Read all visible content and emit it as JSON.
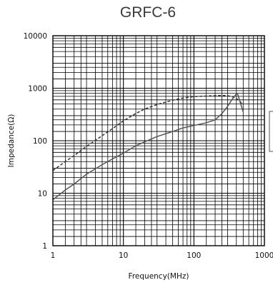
{
  "chart_data": {
    "type": "line",
    "title": "GRFC-6",
    "xlabel": "Frequency(MHz)",
    "ylabel": "Impedance(Ω)",
    "xscale": "log",
    "yscale": "log",
    "xlim": [
      1,
      1000
    ],
    "ylim": [
      1,
      10000
    ],
    "grid": true,
    "x_ticks": [
      {
        "value": 1,
        "label": "1"
      },
      {
        "value": 10,
        "label": "10"
      },
      {
        "value": 100,
        "label": "100"
      },
      {
        "value": 1000,
        "label": "1000"
      }
    ],
    "y_ticks": [
      {
        "value": 1,
        "label": "1"
      },
      {
        "value": 10,
        "label": "10"
      },
      {
        "value": 100,
        "label": "100"
      },
      {
        "value": 1000,
        "label": "1000"
      },
      {
        "value": 10000,
        "label": "10000"
      }
    ],
    "series": [
      {
        "style": "dashed",
        "color": "#333333",
        "x": [
          1,
          1.5,
          2,
          3,
          5,
          7,
          10,
          15,
          20,
          30,
          50,
          70,
          100,
          150,
          200,
          250,
          300,
          350,
          400,
          450,
          500
        ],
        "y": [
          27,
          40,
          52,
          78,
          125,
          170,
          240,
          330,
          400,
          490,
          590,
          650,
          690,
          710,
          720,
          730,
          720,
          690,
          640,
          560,
          480
        ]
      },
      {
        "style": "solid",
        "color": "#555555",
        "x": [
          1,
          1.5,
          2,
          3,
          5,
          7,
          10,
          15,
          20,
          30,
          50,
          70,
          100,
          150,
          200,
          250,
          300,
          350,
          400,
          420,
          450,
          500
        ],
        "y": [
          7.5,
          11.5,
          15,
          23,
          35,
          45,
          58,
          80,
          95,
          120,
          150,
          175,
          195,
          220,
          250,
          330,
          450,
          620,
          780,
          760,
          560,
          350
        ]
      }
    ]
  }
}
